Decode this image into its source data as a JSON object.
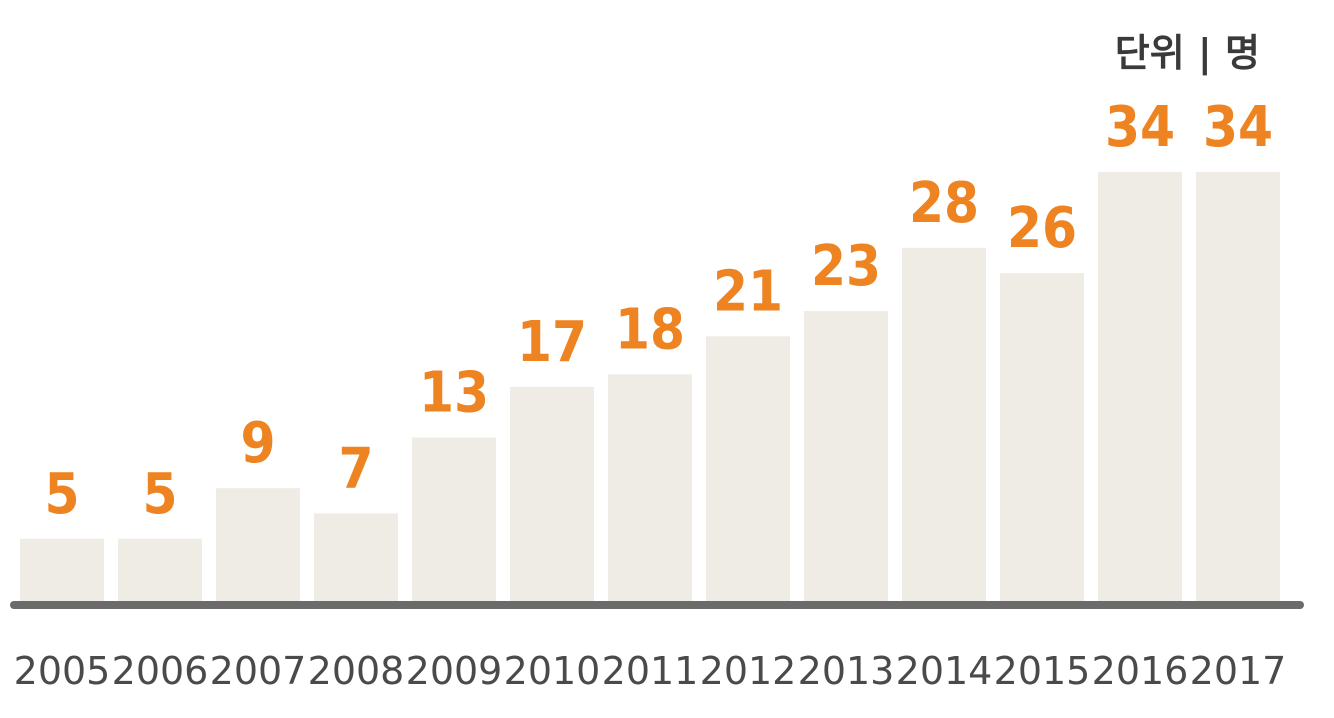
{
  "chart_data": {
    "type": "bar",
    "unit_label": "단위 | 명",
    "categories": [
      "2005",
      "2006",
      "2007",
      "2008",
      "2009",
      "2010",
      "2011",
      "2012",
      "2013",
      "2014",
      "2015",
      "2016",
      "2017"
    ],
    "values": [
      5,
      5,
      9,
      7,
      13,
      17,
      18,
      21,
      23,
      28,
      26,
      34,
      34
    ],
    "data_labels": [
      "5",
      "5",
      "9",
      "7",
      "13",
      "17",
      "18",
      "21",
      "23",
      "28",
      "26",
      "34",
      "34"
    ],
    "colors": {
      "bar": "#efece6",
      "value_label": "#ee8321",
      "axis": "#6b6b6b",
      "tick_label": "#4a4a4a"
    },
    "grid": false,
    "legend": "none"
  }
}
